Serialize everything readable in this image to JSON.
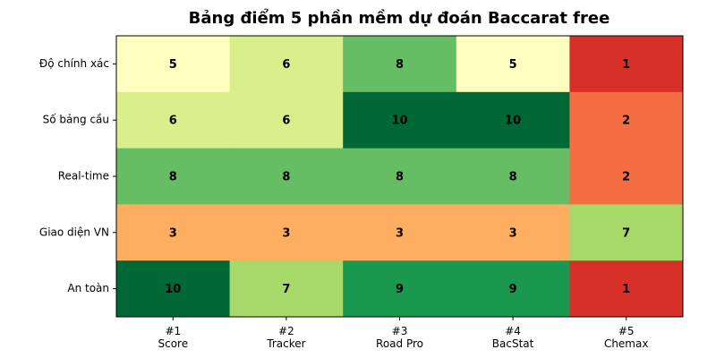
{
  "chart_data": {
    "type": "heatmap",
    "title": "Bảng điểm 5 phần mềm dự đoán Baccarat free",
    "categories": [
      "#1\nScore",
      "#2\nTracker",
      "#3\nRoad Pro",
      "#4\nBacStat",
      "#5\nChemax"
    ],
    "rows": [
      "Độ chính xác",
      "Số bảng cầu",
      "Real-time",
      "Giao diện VN",
      "An toàn"
    ],
    "values": [
      [
        5,
        6,
        8,
        5,
        1
      ],
      [
        6,
        6,
        10,
        10,
        2
      ],
      [
        8,
        8,
        8,
        8,
        2
      ],
      [
        3,
        3,
        3,
        3,
        7
      ],
      [
        10,
        7,
        9,
        9,
        1
      ]
    ],
    "colormap": [
      "#a50026",
      "#d73027",
      "#f46d43",
      "#fdae61",
      "#fee08b",
      "#ffffbf",
      "#d9ef8b",
      "#a6d96a",
      "#66bd63",
      "#1a9850",
      "#006837"
    ],
    "clim": [
      0,
      10
    ]
  }
}
